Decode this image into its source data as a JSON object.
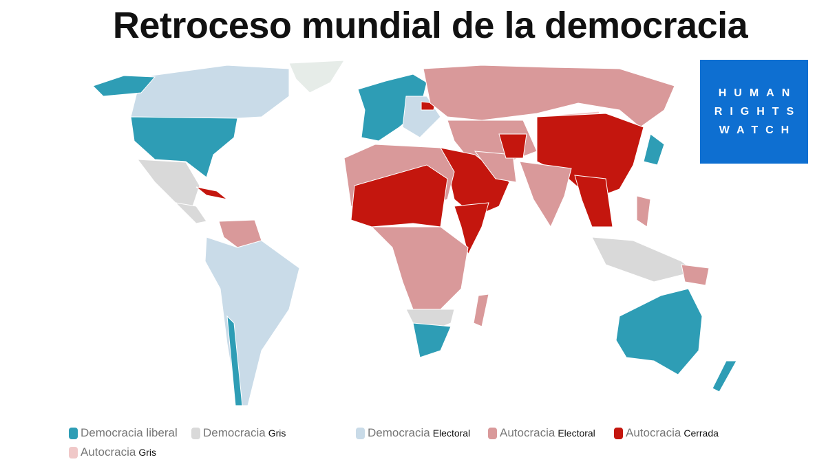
{
  "title": "Retroceso mundial de la democracia",
  "logo": {
    "lines": [
      "HUMAN",
      "RIGHTS",
      "WATCH"
    ],
    "color": "#0e6fd1"
  },
  "legend": [
    {
      "main": "Democracia liberal",
      "sub": "",
      "color": "#2e9db5"
    },
    {
      "main": "Democracia",
      "sub": "Gris",
      "color": "#d9d9d9"
    },
    {
      "main": "Democracia",
      "sub": "Electoral",
      "color": "#c9dbe8"
    },
    {
      "main": "Autocracia",
      "sub": "Electoral",
      "color": "#d9999a"
    },
    {
      "main": "Autocracia",
      "sub": "Cerrada",
      "color": "#c4160e"
    },
    {
      "main": "Autocracia",
      "sub": "Gris",
      "color": "#f0c8c8"
    }
  ]
}
